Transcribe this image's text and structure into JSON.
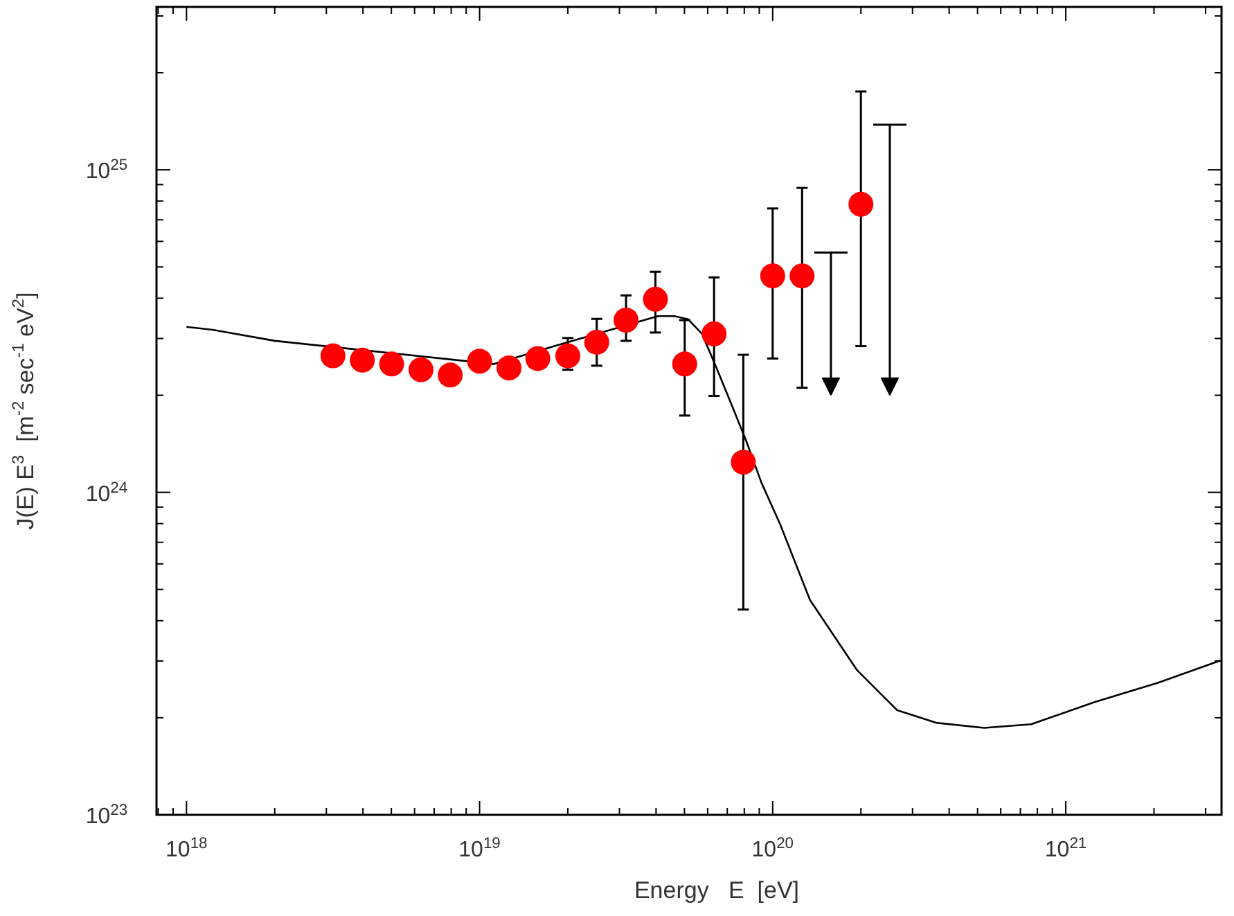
{
  "chart_data": {
    "type": "scatter",
    "xlabel": "Energy   E  [eV]",
    "ylabel": "J(E) E$^{3}$  [m$^{-2}$ sec$^{-1}$ eV$^{2}$]",
    "log": "xy",
    "xlim": [
      7.9e+17,
      3.4e+21
    ],
    "ylim": [
      1e+23,
      3.2e+25
    ],
    "xticks": [
      {
        "value": 8e+17,
        "label": null
      },
      {
        "value": 9e+17,
        "label": null
      },
      {
        "value": 1e+18,
        "label": "10$^{18}$"
      },
      {
        "value": 2e+18,
        "label": null
      },
      {
        "value": 3e+18,
        "label": null
      },
      {
        "value": 4e+18,
        "label": null
      },
      {
        "value": 5e+18,
        "label": null
      },
      {
        "value": 6e+18,
        "label": null
      },
      {
        "value": 7e+18,
        "label": null
      },
      {
        "value": 8e+18,
        "label": null
      },
      {
        "value": 9e+18,
        "label": null
      },
      {
        "value": 1e+19,
        "label": "10$^{19}$"
      },
      {
        "value": 2e+19,
        "label": null
      },
      {
        "value": 3e+19,
        "label": null
      },
      {
        "value": 4e+19,
        "label": null
      },
      {
        "value": 5e+19,
        "label": null
      },
      {
        "value": 6e+19,
        "label": null
      },
      {
        "value": 7e+19,
        "label": null
      },
      {
        "value": 8e+19,
        "label": null
      },
      {
        "value": 9e+19,
        "label": null
      },
      {
        "value": 1e+20,
        "label": "10$^{20}$"
      },
      {
        "value": 2e+20,
        "label": null
      },
      {
        "value": 3e+20,
        "label": null
      },
      {
        "value": 4e+20,
        "label": null
      },
      {
        "value": 5e+20,
        "label": null
      },
      {
        "value": 6e+20,
        "label": null
      },
      {
        "value": 7e+20,
        "label": null
      },
      {
        "value": 8e+20,
        "label": null
      },
      {
        "value": 9e+20,
        "label": null
      },
      {
        "value": 1e+21,
        "label": "10$^{21}$"
      },
      {
        "value": 2e+21,
        "label": null
      },
      {
        "value": 3e+21,
        "label": null
      }
    ],
    "yticks": [
      {
        "value": 1e+23,
        "label": "10$^{23}$"
      },
      {
        "value": 2e+23,
        "label": null
      },
      {
        "value": 3e+23,
        "label": null
      },
      {
        "value": 4e+23,
        "label": null
      },
      {
        "value": 5e+23,
        "label": null
      },
      {
        "value": 6e+23,
        "label": null
      },
      {
        "value": 7e+23,
        "label": null
      },
      {
        "value": 8e+23,
        "label": null
      },
      {
        "value": 9e+23,
        "label": null
      },
      {
        "value": 1e+24,
        "label": "10$^{24}$"
      },
      {
        "value": 2e+24,
        "label": null
      },
      {
        "value": 3e+24,
        "label": null
      },
      {
        "value": 4e+24,
        "label": null
      },
      {
        "value": 5e+24,
        "label": null
      },
      {
        "value": 6e+24,
        "label": null
      },
      {
        "value": 7e+24,
        "label": null
      },
      {
        "value": 8e+24,
        "label": null
      },
      {
        "value": 9e+24,
        "label": null
      },
      {
        "value": 1e+25,
        "label": "10$^{25}$"
      },
      {
        "value": 2e+25,
        "label": null
      },
      {
        "value": 3e+25,
        "label": null
      }
    ],
    "series": [
      {
        "type": "line",
        "color": "#000000",
        "marker": "none",
        "x": [
          1e+18,
          1.23e+18,
          2e+18,
          1.12e+19,
          1.8e+19,
          4.06e+19,
          4.62e+19,
          5.15e+19,
          5.74e+19,
          6.41e+19,
          7.14e+19,
          8.13e+19,
          9.16e+19,
          1.06e+20,
          1.34e+20,
          1.94e+20,
          2.66e+20,
          3.61e+20,
          5.27e+20,
          7.62e+20,
          1.26e+21,
          2.07e+21,
          3.37e+21
        ],
        "values": [
          3.26e+24,
          3.19e+24,
          2.95e+24,
          2.5e+24,
          2.84e+24,
          3.52e+24,
          3.52e+24,
          3.44e+24,
          3.1e+24,
          2.45e+24,
          1.93e+24,
          1.44e+24,
          1.07e+24,
          7.97e+23,
          4.64e+23,
          2.81e+23,
          2.11e+23,
          1.93e+23,
          1.86e+23,
          1.91e+23,
          2.24e+23,
          2.57e+23,
          3.01e+23
        ]
      },
      {
        "color": "#ff0000",
        "marker": "circle",
        "x": [
          3.16e+18,
          3.98e+18,
          5.01e+18,
          6.31e+18,
          7.94e+18,
          1e+19,
          1.26e+19,
          1.58e+19,
          2e+19,
          2.51e+19,
          3.16e+19,
          3.98e+19,
          5.01e+19,
          6.31e+19,
          7.94e+19,
          1e+20,
          1.26e+20,
          2e+20
        ],
        "values": [
          2.65e+24,
          2.57e+24,
          2.5e+24,
          2.4e+24,
          2.31e+24,
          2.55e+24,
          2.43e+24,
          2.6e+24,
          2.65e+24,
          2.92e+24,
          3.42e+24,
          3.97e+24,
          2.5e+24,
          3.1e+24,
          1.24e+24,
          4.69e+24,
          4.69e+24,
          7.82e+24
        ],
        "errors": [
          null,
          null,
          null,
          null,
          null,
          null,
          null,
          null,
          [
            2.4e+24,
            3.01e+24
          ],
          [
            2.47e+24,
            3.45e+24
          ],
          [
            2.95e+24,
            4.08e+24
          ],
          [
            3.13e+24,
            4.83e+24
          ],
          [
            1.73e+24,
            3.42e+24
          ],
          [
            1.99e+24,
            4.64e+24
          ],
          [
            4.33e+23,
            2.67e+24
          ],
          [
            2.6e+24,
            7.59e+24
          ],
          [
            2.11e+24,
            8.79e+24
          ],
          [
            2.84e+24,
            1.75e+25
          ]
        ]
      },
      {
        "color": "#000000",
        "marker": "triangle",
        "x": [
          1.58e+20,
          2.51e+20
        ],
        "values": [
          2.13e+24,
          2.13e+24
        ],
        "errors": [
          [
            2.01e+24,
            5.54e+24
          ],
          [
            2.01e+24,
            1.38e+25
          ]
        ]
      }
    ]
  }
}
